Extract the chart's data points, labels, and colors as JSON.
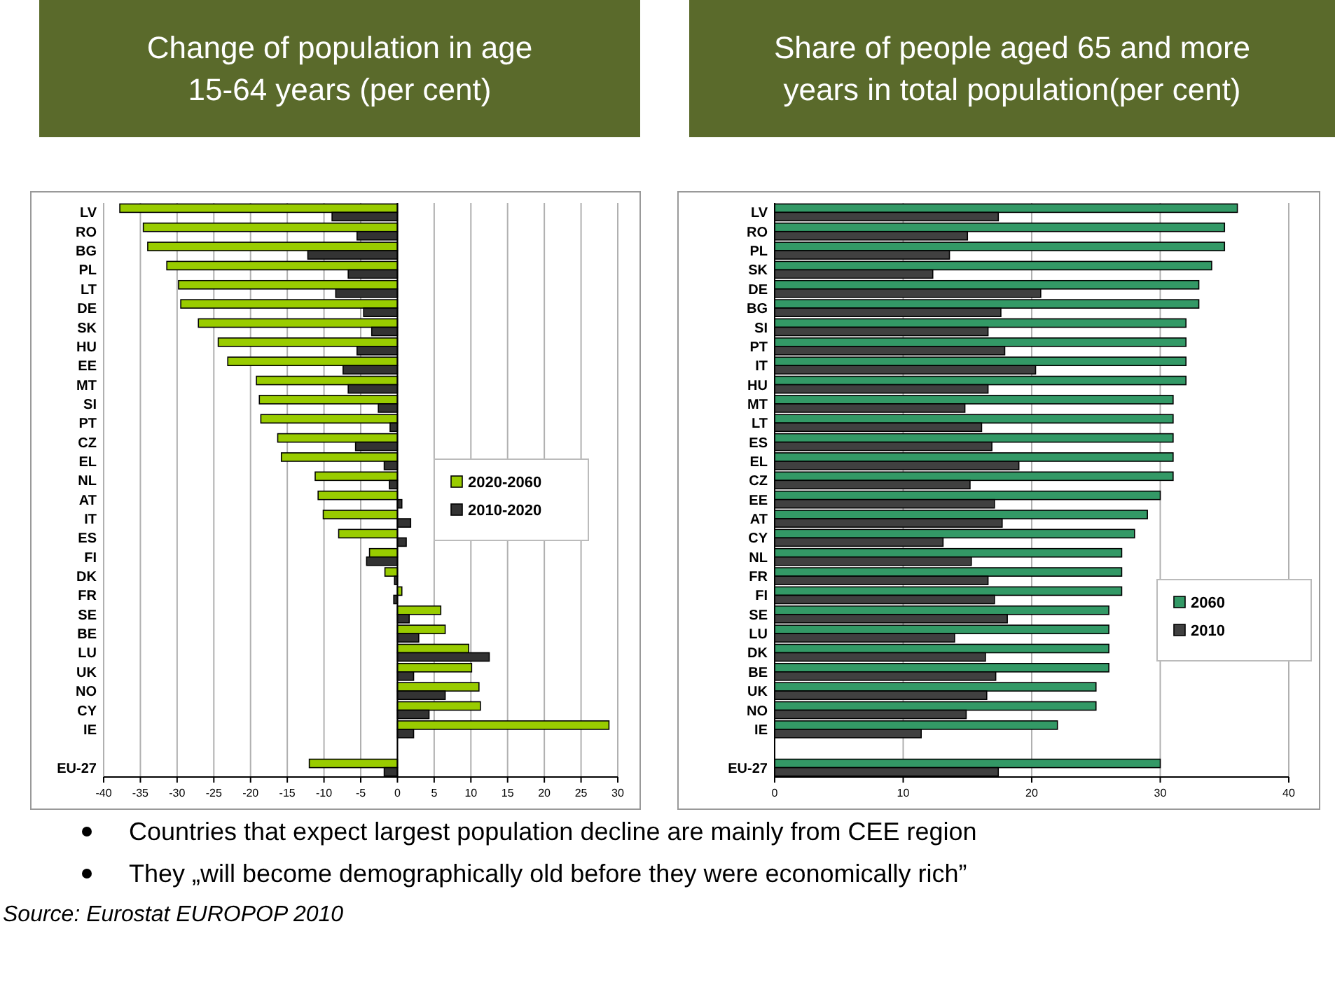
{
  "chart_data": [
    {
      "type": "bar",
      "orientation": "horizontal",
      "title": "Change of population in age 15-64 years (per cent)",
      "categories": [
        "LV",
        "RO",
        "BG",
        "PL",
        "LT",
        "DE",
        "SK",
        "HU",
        "EE",
        "MT",
        "SI",
        "PT",
        "CZ",
        "EL",
        "NL",
        "AT",
        "IT",
        "ES",
        "FI",
        "DK",
        "FR",
        "SE",
        "BE",
        "LU",
        "UK",
        "NO",
        "CY",
        "IE",
        null,
        "EU-27"
      ],
      "series": [
        {
          "name": "2020-2060",
          "color": "#99cc00",
          "values": [
            -37.8,
            -34.6,
            -34.0,
            -31.4,
            -29.8,
            -29.5,
            -27.1,
            -24.4,
            -23.1,
            -19.2,
            -18.8,
            -18.6,
            -16.3,
            -15.8,
            -11.2,
            -10.8,
            -10.1,
            -8.0,
            -3.8,
            -1.7,
            0.6,
            5.9,
            6.5,
            9.7,
            10.1,
            11.1,
            11.3,
            28.8,
            null,
            -12.0
          ]
        },
        {
          "name": "2010-2020",
          "color": "#333333",
          "values": [
            -8.9,
            -5.5,
            -12.2,
            -6.7,
            -8.4,
            -4.6,
            -3.5,
            -5.5,
            -7.4,
            -6.7,
            -2.6,
            -1.0,
            -5.7,
            -1.8,
            -1.1,
            0.6,
            1.8,
            1.2,
            -4.2,
            -0.4,
            -0.5,
            1.6,
            2.9,
            12.5,
            2.2,
            6.5,
            4.3,
            2.2,
            null,
            -1.8
          ]
        }
      ],
      "xlim": [
        -40,
        30
      ],
      "xticks": [
        -40,
        -35,
        -30,
        -25,
        -20,
        -15,
        -10,
        -5,
        0,
        5,
        10,
        15,
        20,
        25,
        30
      ],
      "grid": "x",
      "legend": "right",
      "annotations": [
        "Countries that expect largest population decline are mainly from CEE region",
        "They „will become demographically old before they were economically rich”",
        "Source: Eurostat EUROPOP 2010"
      ]
    },
    {
      "type": "bar",
      "orientation": "horizontal",
      "title": "Share of people aged 65 and more years in total population(per cent)",
      "categories": [
        "LV",
        "RO",
        "PL",
        "SK",
        "DE",
        "BG",
        "SI",
        "PT",
        "IT",
        "HU",
        "MT",
        "LT",
        "ES",
        "EL",
        "CZ",
        "EE",
        "AT",
        "CY",
        "NL",
        "FR",
        "FI",
        "SE",
        "LU",
        "DK",
        "BE",
        "UK",
        "NO",
        "IE",
        null,
        "EU-27"
      ],
      "series": [
        {
          "name": "2060",
          "color": "#339966",
          "values": [
            36,
            35,
            35,
            34,
            33,
            33,
            32,
            32,
            32,
            32,
            31,
            31,
            31,
            31,
            31,
            30,
            29,
            28,
            27,
            27,
            27,
            26,
            26,
            26,
            26,
            25,
            25,
            22,
            null,
            30
          ]
        },
        {
          "name": "2010",
          "color": "#404040",
          "values": [
            17.4,
            15.0,
            13.6,
            12.3,
            20.7,
            17.6,
            16.6,
            17.9,
            20.3,
            16.6,
            14.8,
            16.1,
            16.9,
            19.0,
            15.2,
            17.1,
            17.7,
            13.1,
            15.3,
            16.6,
            17.1,
            18.1,
            14.0,
            16.4,
            17.2,
            16.5,
            14.9,
            11.4,
            null,
            17.4
          ]
        }
      ],
      "xlim": [
        0,
        40
      ],
      "xticks": [
        0,
        10,
        20,
        30,
        40
      ],
      "grid": "x",
      "legend": "right"
    }
  ]
}
